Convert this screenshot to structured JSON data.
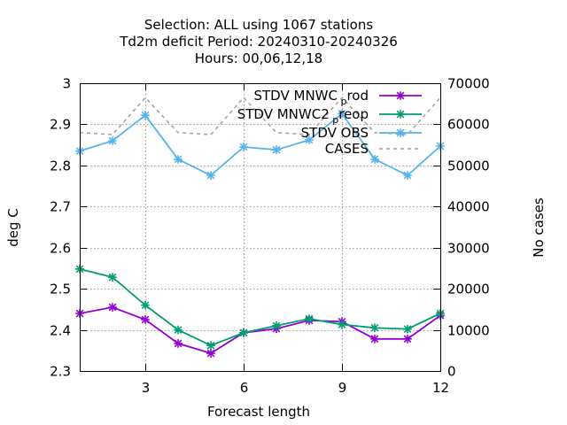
{
  "chart_data": {
    "type": "line",
    "title_lines": [
      "Selection: ALL using  1067 stations",
      "Td2m deficit   Period: 20240310-20240326",
      "Hours:  00,06,12,18"
    ],
    "xlabel": "Forecast length",
    "ylabel": "deg C",
    "y2label": "No cases",
    "xlim": [
      1,
      12
    ],
    "ylim": [
      2.3,
      3.0
    ],
    "y2lim": [
      0,
      70000
    ],
    "xticks": [
      3,
      6,
      9,
      12
    ],
    "yticks": [
      2.3,
      2.4,
      2.5,
      2.6,
      2.7,
      2.8,
      2.9,
      3.0
    ],
    "ytick_labels": [
      "2.3",
      "2.4",
      "2.5",
      "2.6",
      "2.7",
      "2.8",
      "2.9",
      "3"
    ],
    "y2ticks": [
      0,
      10000,
      20000,
      30000,
      40000,
      50000,
      60000,
      70000
    ],
    "grid": true,
    "legend_position": "top-right",
    "x": [
      1,
      2,
      3,
      4,
      5,
      6,
      7,
      8,
      9,
      10,
      11,
      12
    ],
    "series": [
      {
        "name": "STDV MNWC_prod",
        "legend_main": "STDV MNWC",
        "legend_sub": "p",
        "legend_rest": "rod",
        "color": "#9400d3",
        "axis": "y",
        "marker": "x",
        "values": [
          2.44,
          2.455,
          2.425,
          2.367,
          2.343,
          2.393,
          2.403,
          2.423,
          2.42,
          2.378,
          2.378,
          2.435
        ]
      },
      {
        "name": "STDV MNWC2_preop",
        "legend_main": "STDV MNWC2",
        "legend_sub": "p",
        "legend_rest": "reop",
        "color": "#009e73",
        "axis": "y",
        "marker": "x",
        "values": [
          2.548,
          2.528,
          2.46,
          2.4,
          2.362,
          2.393,
          2.41,
          2.427,
          2.413,
          2.405,
          2.402,
          2.44
        ]
      },
      {
        "name": "STDV OBS",
        "legend_main": "STDV OBS",
        "legend_sub": "",
        "legend_rest": "",
        "color": "#56b4e9",
        "axis": "y",
        "marker": "x",
        "values": [
          2.835,
          2.86,
          2.922,
          2.815,
          2.776,
          2.845,
          2.838,
          2.862,
          2.926,
          2.815,
          2.776,
          2.847
        ]
      },
      {
        "name": "CASES",
        "legend_main": "CASES",
        "legend_sub": "",
        "legend_rest": "",
        "color": "#a0a0a0",
        "axis": "y2",
        "marker": "none",
        "dashed": true,
        "values": [
          58000,
          57500,
          66500,
          58000,
          57500,
          66500,
          58000,
          57500,
          66500,
          58000,
          57500,
          66500
        ]
      }
    ]
  }
}
